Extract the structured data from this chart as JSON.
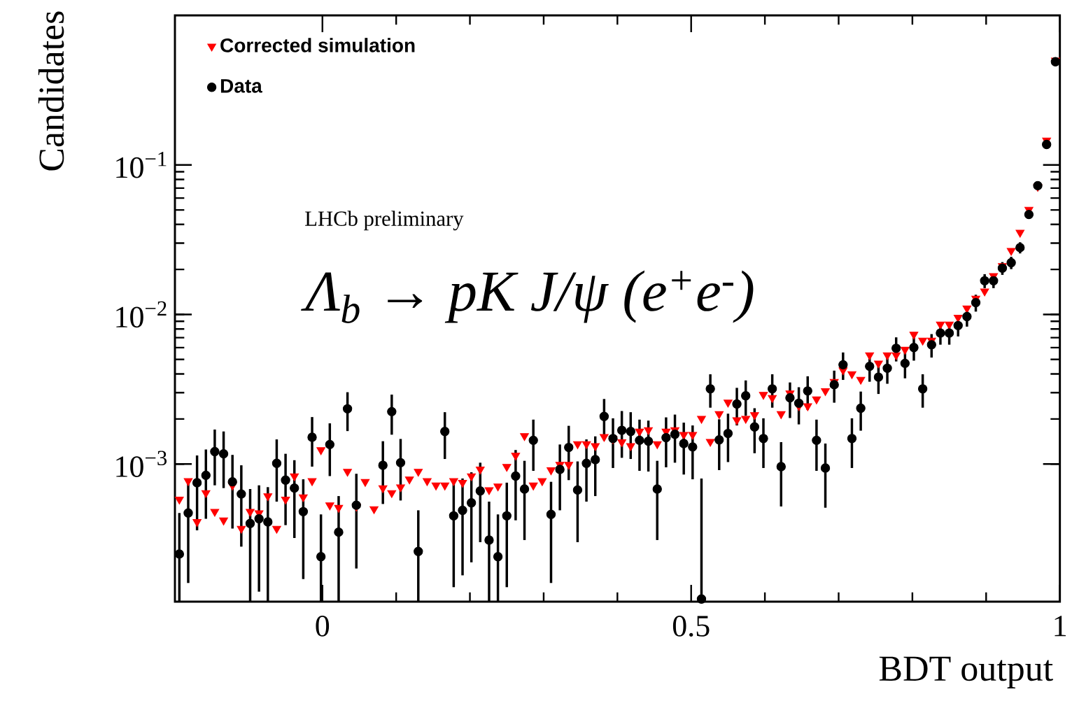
{
  "chart_data": {
    "type": "scatter",
    "xlabel": "BDT output",
    "ylabel": "Candidates",
    "annotations": [
      "LHCb preliminary",
      "Λ$_{b}$ → pK J/ψ (e$^{+}$e$^{-}$)"
    ],
    "x": [
      -0.194,
      -0.182,
      -0.17,
      -0.158,
      -0.146,
      -0.134,
      -0.122,
      -0.11,
      -0.098,
      -0.086,
      -0.074,
      -0.062,
      -0.05,
      -0.038,
      -0.026,
      -0.014,
      -0.002,
      0.01,
      0.022,
      0.034,
      0.046,
      0.058,
      0.07,
      0.082,
      0.094,
      0.106,
      0.118,
      0.13,
      0.142,
      0.154,
      0.166,
      0.178,
      0.19,
      0.202,
      0.214,
      0.226,
      0.238,
      0.25,
      0.262,
      0.274,
      0.286,
      0.298,
      0.31,
      0.322,
      0.334,
      0.346,
      0.358,
      0.37,
      0.382,
      0.394,
      0.406,
      0.418,
      0.43,
      0.442,
      0.454,
      0.466,
      0.478,
      0.49,
      0.502,
      0.514,
      0.526,
      0.538,
      0.55,
      0.562,
      0.574,
      0.586,
      0.598,
      0.61,
      0.622,
      0.634,
      0.646,
      0.658,
      0.67,
      0.682,
      0.694,
      0.706,
      0.718,
      0.73,
      0.742,
      0.754,
      0.766,
      0.778,
      0.79,
      0.802,
      0.814,
      0.826,
      0.838,
      0.85,
      0.862,
      0.874,
      0.886,
      0.898,
      0.91,
      0.922,
      0.934,
      0.946,
      0.958,
      0.97,
      0.982,
      0.994
    ],
    "series": [
      {
        "name": "Corrected simulation",
        "color": "#ff0000",
        "marker": "triangle",
        "values": [
          0.00058,
          0.00077,
          0.00041,
          0.00064,
          0.00048,
          0.00042,
          0.00072,
          0.00037,
          0.00048,
          0.00047,
          0.00061,
          0.00037,
          0.00058,
          0.00083,
          0.0006,
          0.00077,
          0.00124,
          0.00053,
          0.00051,
          0.00089,
          0.00052,
          0.00076,
          0.0005,
          0.00069,
          0.00064,
          0.0007,
          0.00079,
          0.00089,
          0.00077,
          0.00072,
          0.00072,
          0.00077,
          0.00075,
          0.00083,
          0.00092,
          0.00067,
          0.00071,
          0.00096,
          0.00114,
          0.00154,
          0.00072,
          0.00077,
          0.00091,
          0.00099,
          0.00099,
          0.00136,
          0.00136,
          0.00132,
          0.00152,
          0.00147,
          0.0014,
          0.00132,
          0.00165,
          0.00169,
          0.00136,
          0.00165,
          0.00169,
          0.00157,
          0.00157,
          0.00201,
          0.00141,
          0.00216,
          0.00258,
          0.00197,
          0.00201,
          0.00213,
          0.00291,
          0.00277,
          0.00216,
          0.00297,
          0.00244,
          0.00244,
          0.00271,
          0.00308,
          0.00355,
          0.00424,
          0.004,
          0.00367,
          0.00535,
          0.00471,
          0.00535,
          0.00535,
          0.00582,
          0.00735,
          0.00671,
          0.00671,
          0.00859,
          0.00859,
          0.00955,
          0.011,
          0.0128,
          0.0143,
          0.0181,
          0.0211,
          0.0267,
          0.0353,
          0.0503,
          0.0716,
          0.146,
          0.5
        ],
        "type": "scatter"
      },
      {
        "name": "Data",
        "color": "#000000",
        "marker": "circle",
        "values": [
          0.00025,
          0.00047,
          0.00075,
          0.00084,
          0.00121,
          0.00117,
          0.00076,
          0.00063,
          0.0004,
          0.00043,
          0.00041,
          0.00101,
          0.00078,
          0.00069,
          0.00048,
          0.00151,
          0.00024,
          0.00135,
          0.00035,
          0.00234,
          0.00053,
          null,
          null,
          0.00098,
          0.00224,
          0.00102,
          null,
          0.00026,
          null,
          null,
          0.00165,
          0.00045,
          0.00049,
          0.00055,
          0.00066,
          0.00031,
          0.00024,
          0.00045,
          0.00083,
          0.00068,
          0.00144,
          null,
          0.00046,
          0.00092,
          0.00129,
          0.00067,
          0.00101,
          0.00107,
          0.00208,
          0.00148,
          0.00168,
          0.00165,
          0.00144,
          0.00142,
          0.00068,
          0.0015,
          0.00158,
          0.00137,
          0.0013,
          0.000125,
          0.00318,
          0.00145,
          0.0016,
          0.00252,
          0.00286,
          0.00177,
          0.00148,
          0.00318,
          0.00096,
          0.00277,
          0.00255,
          0.00308,
          0.00144,
          0.00094,
          0.00339,
          0.00461,
          0.00148,
          0.00236,
          0.0045,
          0.00381,
          0.00437,
          0.00594,
          0.00471,
          0.00601,
          0.00318,
          0.00627,
          0.00751,
          0.00751,
          0.00843,
          0.00968,
          0.012,
          0.0168,
          0.0168,
          0.0204,
          0.0222,
          0.028,
          0.0466,
          0.0727,
          0.137,
          0.49
        ],
        "errors": [
          [
            0.00012,
            0.00047
          ],
          [
            0.00016,
            0.00078
          ],
          [
            0.00036,
            0.00114
          ],
          [
            0.00043,
            0.00125
          ],
          [
            0.00072,
            0.0017
          ],
          [
            0.00069,
            0.00165
          ],
          [
            0.00037,
            0.00115
          ],
          [
            0.00028,
            0.00098
          ],
          [
            0.00012,
            0.00068
          ],
          [
            0.00014,
            0.00072
          ],
          [
            0.00012,
            0.0007
          ],
          [
            0.00056,
            0.00146
          ],
          [
            0.00039,
            0.00117
          ],
          [
            0.00032,
            0.00106
          ],
          [
            0.00017,
            0.00079
          ],
          [
            0.00096,
            0.00206
          ],
          [
            0.00012,
            0.00046
          ],
          [
            0.00083,
            0.00187
          ],
          [
            0.00012,
            0.00061
          ],
          [
            0.00166,
            0.00302
          ],
          [
            0.0002,
            0.00086
          ],
          null,
          null,
          [
            0.00054,
            0.00142
          ],
          [
            0.00157,
            0.00291
          ],
          [
            0.00057,
            0.00147
          ],
          null,
          [
            0.00012,
            0.00049
          ],
          null,
          null,
          [
            0.00108,
            0.00222
          ],
          [
            0.00015,
            0.00075
          ],
          [
            0.00018,
            0.0008
          ],
          [
            0.00022,
            0.00088
          ],
          [
            0.0003,
            0.00102
          ],
          [
            0.00012,
            0.00056
          ],
          [
            0.00012,
            0.00046
          ],
          [
            0.00015,
            0.00075
          ],
          [
            0.00042,
            0.00124
          ],
          [
            0.00031,
            0.00105
          ],
          [
            0.0009,
            0.00198
          ],
          null,
          [
            0.00016,
            0.00076
          ],
          [
            0.00049,
            0.00135
          ],
          [
            0.00078,
            0.0018
          ],
          [
            0.0003,
            0.00104
          ],
          [
            0.00056,
            0.00146
          ],
          [
            0.00061,
            0.00153
          ],
          [
            0.00144,
            0.00272
          ],
          [
            0.00094,
            0.00202
          ],
          [
            0.0011,
            0.00226
          ],
          [
            0.00108,
            0.00222
          ],
          [
            0.0009,
            0.00198
          ],
          [
            0.00089,
            0.00195
          ],
          [
            0.00031,
            0.00105
          ],
          [
            0.00095,
            0.00205
          ],
          [
            0.00102,
            0.00214
          ],
          [
            0.00085,
            0.00189
          ],
          [
            0.00079,
            0.00181
          ],
          [
            0.00012,
            0.0008
          ],
          [
            0.00238,
            0.00398
          ],
          [
            0.00091,
            0.00199
          ],
          [
            0.00103,
            0.00217
          ],
          [
            0.00181,
            0.00323
          ],
          [
            0.0021,
            0.00362
          ],
          [
            0.00118,
            0.00236
          ],
          [
            0.00094,
            0.00202
          ],
          [
            0.00238,
            0.00398
          ],
          [
            0.00052,
            0.0014
          ],
          [
            0.00203,
            0.00351
          ],
          [
            0.00184,
            0.00326
          ],
          [
            0.0023,
            0.00386
          ],
          [
            0.0009,
            0.00198
          ],
          [
            0.00051,
            0.00137
          ],
          [
            0.00257,
            0.00421
          ],
          [
            0.00365,
            0.00557
          ],
          [
            0.00094,
            0.00202
          ],
          [
            0.00167,
            0.00305
          ],
          [
            0.00355,
            0.00545
          ],
          [
            0.00294,
            0.00468
          ],
          [
            0.00344,
            0.0053
          ],
          [
            0.00485,
            0.00703
          ],
          [
            0.00374,
            0.00568
          ],
          [
            0.00491,
            0.00711
          ],
          [
            0.00238,
            0.00398
          ],
          [
            0.00515,
            0.00739
          ],
          [
            0.00628,
            0.00874
          ],
          [
            0.00628,
            0.00874
          ],
          [
            0.00713,
            0.00973
          ],
          [
            0.00829,
            0.01107
          ],
          [
            0.01045,
            0.01355
          ],
          [
            0.015,
            0.0186
          ],
          [
            0.015,
            0.0186
          ],
          [
            0.0184,
            0.0224
          ],
          [
            0.0201,
            0.0243
          ],
          [
            0.0256,
            0.0304
          ],
          [
            0.0435,
            0.0497
          ],
          [
            0.0689,
            0.0765
          ],
          [
            0.132,
            0.142
          ],
          [
            0.48,
            0.5
          ]
        ]
      }
    ],
    "xlim": [
      -0.2,
      1.0
    ],
    "ylim": [
      0.00012,
      1
    ],
    "xticks": [
      0,
      0.5,
      1
    ],
    "yticks": [
      {
        "value": 0.001,
        "label": "10$^{−3}$"
      },
      {
        "value": 0.01,
        "label": "10$^{−2}$"
      },
      {
        "value": 0.1,
        "label": "10$^{−1}$"
      }
    ],
    "log": "y",
    "legend": "top left"
  }
}
